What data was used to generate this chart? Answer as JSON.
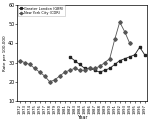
{
  "title": "",
  "xlabel": "Year",
  "ylabel": "Rate per 100,000",
  "legend": [
    "Greater London (GBR)",
    "New York City (CDR)"
  ],
  "london_years": [
    1982,
    1983,
    1984,
    1985,
    1986,
    1987,
    1988,
    1989,
    1990,
    1991,
    1992,
    1993,
    1994,
    1995,
    1996,
    1997
  ],
  "london_values": [
    33,
    31,
    29,
    27,
    27,
    26,
    25,
    26,
    27,
    29,
    31,
    32,
    33,
    34,
    38,
    34
  ],
  "newyork_years": [
    1972,
    1973,
    1974,
    1975,
    1976,
    1977,
    1978,
    1979,
    1980,
    1981,
    1982,
    1983,
    1984,
    1985,
    1986,
    1987,
    1988,
    1989,
    1990,
    1991,
    1992,
    1993,
    1994
  ],
  "newyork_values": [
    31,
    30,
    29,
    27,
    25,
    23,
    20,
    21,
    23,
    25,
    26,
    27,
    26,
    26,
    27,
    27,
    28,
    30,
    32,
    42,
    51,
    46,
    40
  ],
  "ylim": [
    10,
    60
  ],
  "yticks": [
    10,
    20,
    30,
    40,
    50,
    60
  ],
  "xlim_start": 1972,
  "xlim_end": 1997,
  "background_color": "#ffffff",
  "line_color_london": "#222222",
  "line_color_ny": "#555555",
  "marker_london": "s",
  "marker_ny": "D",
  "xtick_labels": [
    "1972",
    "1973",
    "1974",
    "1975",
    "1976",
    "1977",
    "1978",
    "1979",
    "1980",
    "1981",
    "1982",
    "1983",
    "1984",
    "1985",
    "1986",
    "1987",
    "1988",
    "1989",
    "1990",
    "1991",
    "1992",
    "1993",
    "1994",
    "1995",
    "1996",
    "1997"
  ]
}
